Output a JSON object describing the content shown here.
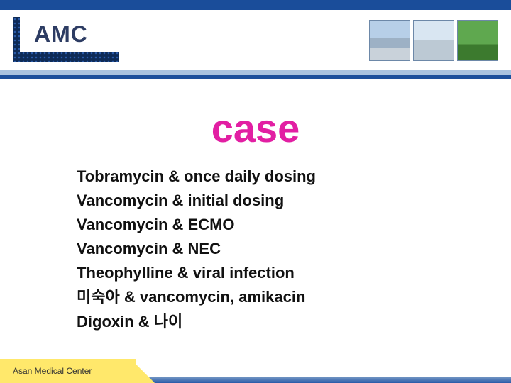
{
  "header": {
    "logo_text": "AMC"
  },
  "title": "case",
  "items": [
    "Tobramycin & once daily dosing",
    "Vancomycin & initial dosing",
    "Vancomycin & ECMO",
    "Vancomycin & NEC",
    "Theophylline & viral infection",
    "미숙아 & vancomycin, amikacin",
    "Digoxin & 나이"
  ],
  "footer": {
    "org": "Asan Medical Center"
  },
  "colors": {
    "title_color": "#e21fa3",
    "bar_blue": "#1b4f9c",
    "bar_light": "#a9c3e0",
    "footer_yellow": "#ffe86b"
  }
}
